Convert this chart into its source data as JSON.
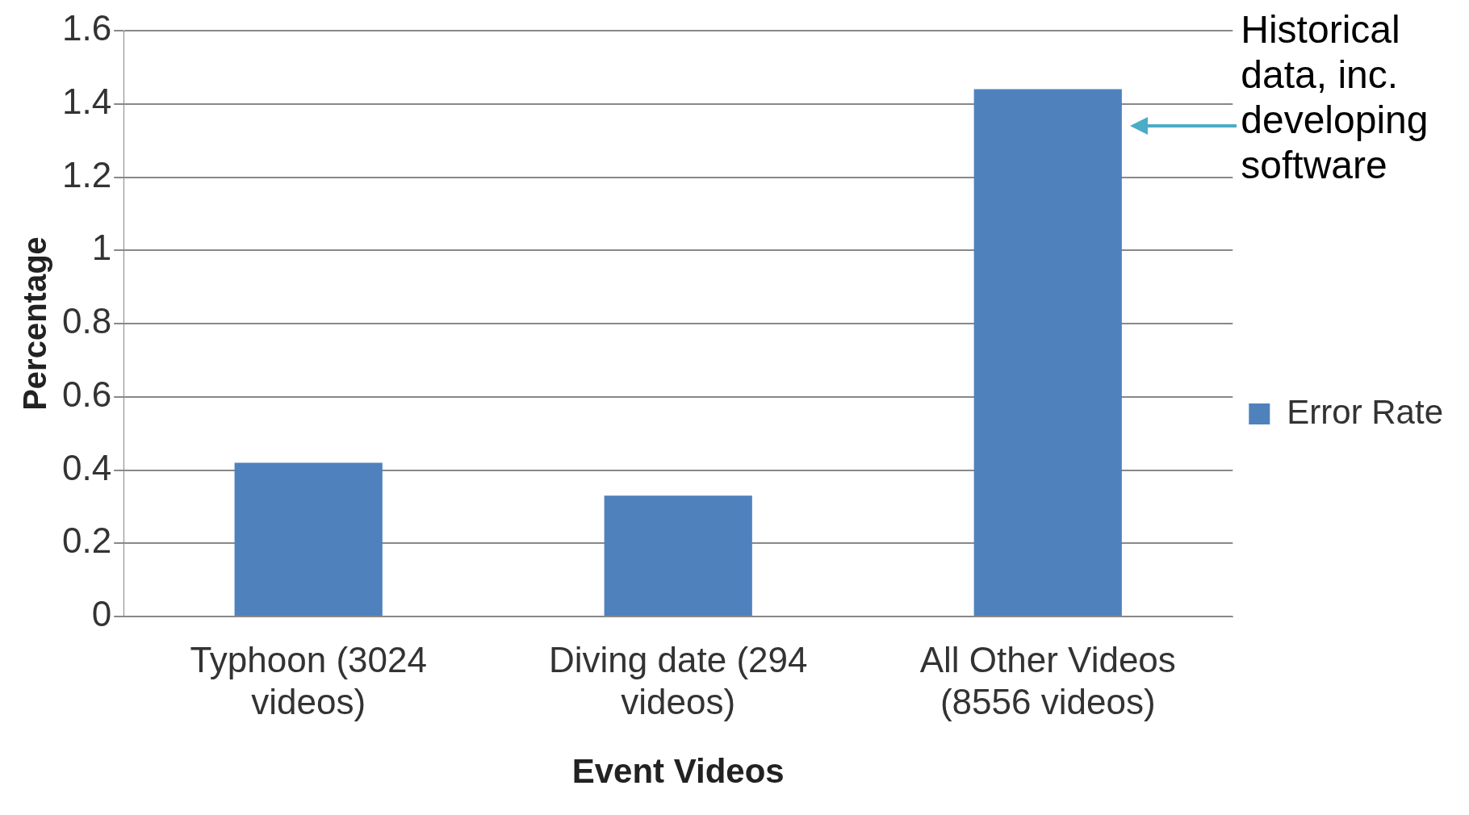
{
  "chart_data": {
    "type": "bar",
    "xlabel": "Event Videos",
    "ylabel": "Percentage",
    "categories": [
      "Typhoon (3024 videos)",
      "Diving date (294 videos)",
      "All Other Videos (8556 videos)"
    ],
    "series": [
      {
        "name": "Error Rate",
        "color": "#4f81bd",
        "values": [
          0.42,
          0.33,
          1.44
        ]
      }
    ],
    "ylim": [
      0,
      1.6
    ],
    "yticks": [
      0,
      0.2,
      0.4,
      0.6,
      0.8,
      1,
      1.2,
      1.4,
      1.6
    ],
    "grid": "y",
    "legend": "right",
    "annotations": [
      "Historical data, inc. developing software"
    ]
  }
}
